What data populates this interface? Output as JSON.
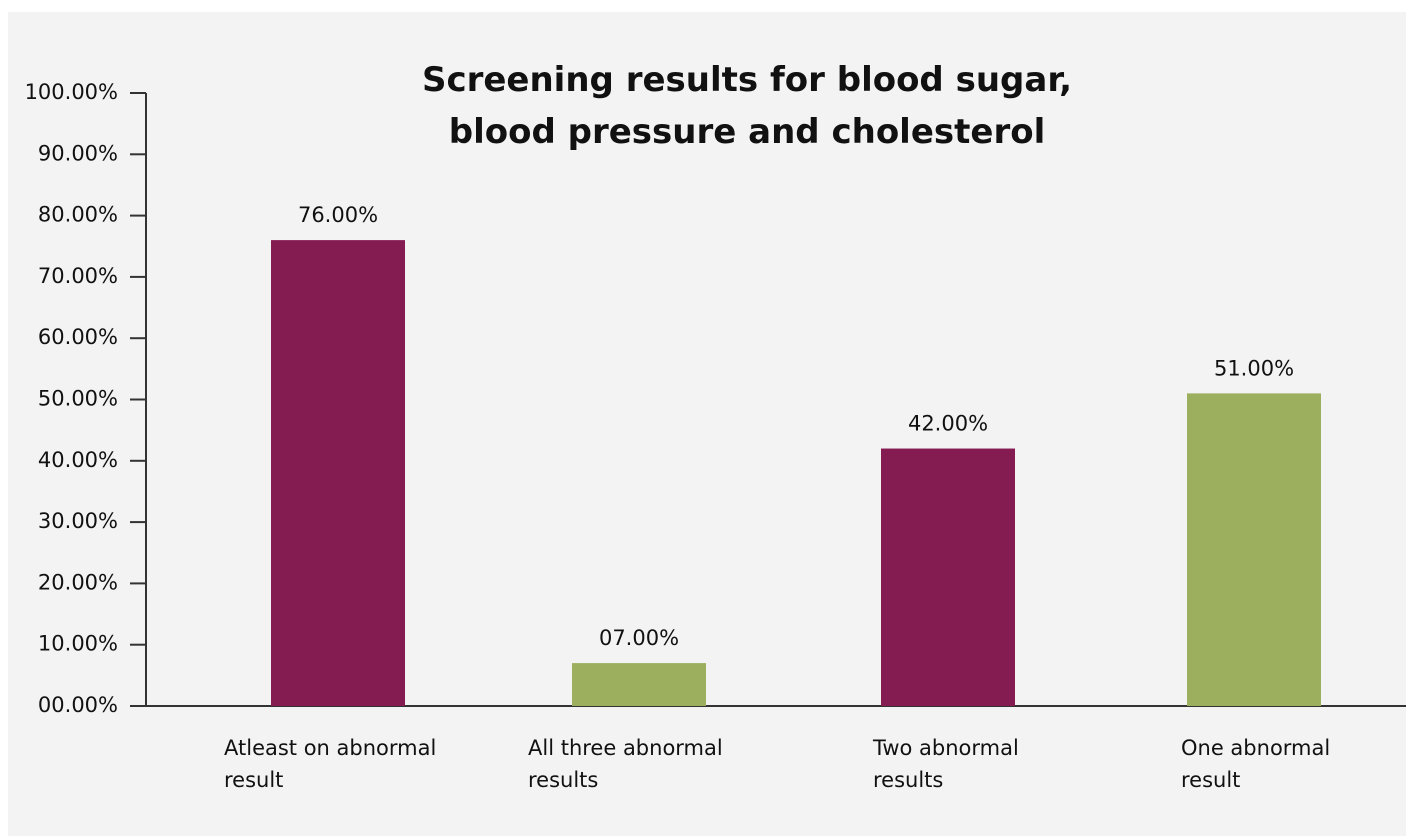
{
  "chart_data": {
    "type": "bar",
    "title": "Screening results for blood sugar, blood pressure and cholesterol",
    "categories": [
      "Atleast on abnormal result",
      "All three abnormal results",
      "Two abnormal results",
      "One abnormal result"
    ],
    "values": [
      76,
      7,
      42,
      51
    ],
    "value_labels": [
      "76.00%",
      "07.00%",
      "42.00%",
      "51.00%"
    ],
    "colors": [
      "#841b51",
      "#9caf5f",
      "#841b51",
      "#9caf5f"
    ],
    "ylim": [
      0,
      100
    ],
    "yticks": [
      {
        "value": 0,
        "label": "00.00%"
      },
      {
        "value": 10,
        "label": "10.00%"
      },
      {
        "value": 20,
        "label": "20.00%"
      },
      {
        "value": 30,
        "label": "30.00%"
      },
      {
        "value": 40,
        "label": "40.00%"
      },
      {
        "value": 50,
        "label": "50.00%"
      },
      {
        "value": 60,
        "label": "60.00%"
      },
      {
        "value": 70,
        "label": "70.00%"
      },
      {
        "value": 80,
        "label": "80.00%"
      },
      {
        "value": 90,
        "label": "90.00%"
      },
      {
        "value": 100,
        "label": "100.00%"
      }
    ],
    "grid": false
  }
}
